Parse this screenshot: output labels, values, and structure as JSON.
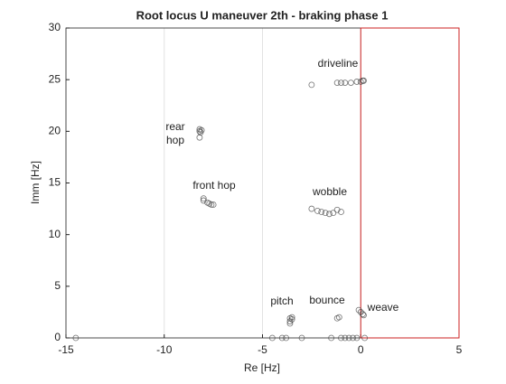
{
  "chart_data": {
    "type": "scatter",
    "title": "Root locus U maneuver 2th - braking phase 1",
    "xlabel": "Re [Hz]",
    "ylabel": "Imm [Hz]",
    "x": [
      -2.5,
      -1.2,
      -1.0,
      -0.8,
      -0.5,
      -0.2,
      0.0,
      0.1,
      0.15,
      -8.2,
      -8.2,
      -8.15,
      -8.1,
      -8.2,
      -8.0,
      -7.8,
      -7.7,
      -7.6,
      -7.5,
      -8.0,
      -2.5,
      -2.2,
      -2.0,
      -1.8,
      -1.6,
      -1.4,
      -1.2,
      -1.0,
      -3.5,
      -3.6,
      -3.5,
      -3.6,
      -3.6,
      -1.1,
      -1.2,
      -0.1,
      0.0,
      0.1,
      0.15,
      -14.5,
      -4.5,
      -4.0,
      -3.8,
      -3.0,
      -1.5,
      -1.0,
      -0.8,
      -0.6,
      -0.4,
      -0.2,
      0.2
    ],
    "values": [
      24.5,
      24.7,
      24.7,
      24.7,
      24.7,
      24.8,
      24.8,
      24.9,
      24.9,
      20.2,
      20.0,
      19.9,
      20.1,
      19.4,
      13.3,
      13.1,
      13.0,
      12.9,
      12.9,
      13.5,
      12.5,
      12.3,
      12.2,
      12.1,
      12.0,
      12.1,
      12.4,
      12.2,
      2.0,
      1.9,
      1.8,
      1.6,
      1.4,
      2.0,
      1.9,
      2.7,
      2.5,
      2.3,
      2.2,
      0,
      0,
      0,
      0,
      0,
      0,
      0,
      0,
      0,
      0,
      0,
      0
    ],
    "color": "#444444",
    "annotations": [
      "driveline",
      "rear",
      "hop",
      "front hop",
      "wobble",
      "pitch",
      "bounce",
      "weave"
    ],
    "region": {
      "x": [
        0,
        5
      ],
      "color": "#cc2222"
    },
    "xlim": [
      -15,
      5
    ],
    "xticks": [
      -15,
      -10,
      -5,
      0,
      5
    ],
    "ylim": [
      0,
      30
    ],
    "yticks": [
      0,
      5,
      10,
      15,
      20,
      25,
      30
    ],
    "grid": "x"
  }
}
